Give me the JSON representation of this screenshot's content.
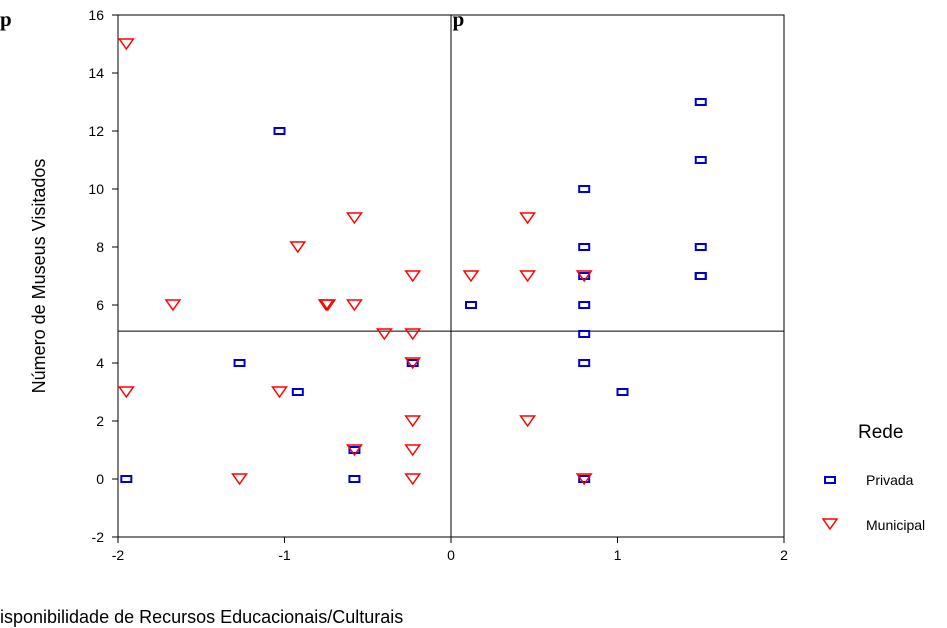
{
  "chart_data": {
    "type": "scatter",
    "title": "p                                                                                    p",
    "xlabel": "isponibilidade de Recursos Educacionais/Culturais",
    "ylabel": "Número de Museus Visitados",
    "xlim": [
      -2,
      2
    ],
    "ylim": [
      -2,
      16
    ],
    "x_ticks": [
      "-2",
      "-1",
      "0",
      "1",
      "2"
    ],
    "y_ticks": [
      "-2",
      "0",
      "2",
      "4",
      "6",
      "8",
      "10",
      "12",
      "14",
      "16"
    ],
    "reference_lines": {
      "x": 0,
      "y": 5.1
    },
    "legend": {
      "title": "Rede",
      "position": "right"
    },
    "series": [
      {
        "name": "Privada",
        "color": "#0000cc",
        "marker": "square",
        "points": [
          [
            1.5,
            13
          ],
          [
            1.5,
            11
          ],
          [
            1.5,
            8
          ],
          [
            1.5,
            7
          ],
          [
            1.5,
            7
          ],
          [
            0.8,
            10
          ],
          [
            0.8,
            8
          ],
          [
            0.8,
            7
          ],
          [
            0.8,
            6
          ],
          [
            0.8,
            5
          ],
          [
            0.8,
            4
          ],
          [
            0.8,
            0
          ],
          [
            1.03,
            3
          ],
          [
            0.12,
            6
          ],
          [
            -1.03,
            12
          ],
          [
            -1.27,
            4
          ],
          [
            -0.92,
            3
          ],
          [
            -0.58,
            1
          ],
          [
            -0.58,
            0
          ],
          [
            -0.23,
            4
          ],
          [
            -1.95,
            0
          ]
        ]
      },
      {
        "name": "Municipal",
        "color": "#ff0000",
        "marker": "triangle-down",
        "points": [
          [
            -1.95,
            15
          ],
          [
            -0.58,
            9
          ],
          [
            -0.92,
            8
          ],
          [
            -1.67,
            6
          ],
          [
            -0.75,
            6
          ],
          [
            -0.74,
            6
          ],
          [
            -0.58,
            6
          ],
          [
            -0.23,
            7
          ],
          [
            0.12,
            7
          ],
          [
            0.46,
            7
          ],
          [
            0.8,
            7
          ],
          [
            0.46,
            9
          ],
          [
            -0.4,
            5
          ],
          [
            -0.23,
            5
          ],
          [
            -0.23,
            4
          ],
          [
            -1.95,
            3
          ],
          [
            -1.03,
            3
          ],
          [
            -0.23,
            2
          ],
          [
            0.46,
            2
          ],
          [
            -0.58,
            1
          ],
          [
            -0.23,
            1
          ],
          [
            -1.27,
            0
          ],
          [
            -0.23,
            0
          ],
          [
            0.8,
            0
          ]
        ]
      }
    ]
  }
}
